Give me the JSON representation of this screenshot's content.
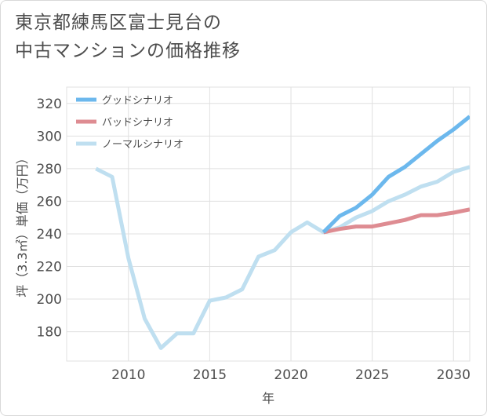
{
  "title_lines": [
    "東京都練馬区富士見台の",
    "中古マンションの価格推移"
  ],
  "chart_data": {
    "type": "line",
    "title": "東京都練馬区富士見台の中古マンションの価格推移",
    "xlabel": "年",
    "ylabel": "坪（3.3㎡）単価（万円）",
    "xlim": [
      2006.2,
      2031
    ],
    "ylim": [
      162,
      330
    ],
    "xticks": [
      2010,
      2015,
      2020,
      2025,
      2030
    ],
    "yticks": [
      180,
      200,
      220,
      240,
      260,
      280,
      300,
      320
    ],
    "grid": true,
    "legend_position": "top-left",
    "series": [
      {
        "name": "グッドシナリオ",
        "color": "#6cb8ed",
        "x": [
          2022,
          2023,
          2024,
          2025,
          2026,
          2027,
          2028,
          2029,
          2030,
          2031
        ],
        "values": [
          241,
          251,
          256,
          264,
          275,
          281,
          289,
          297,
          304,
          312
        ]
      },
      {
        "name": "バッドシナリオ",
        "color": "#de8c92",
        "x": [
          2022,
          2023,
          2024,
          2025,
          2026,
          2027,
          2028,
          2029,
          2030,
          2031
        ],
        "values": [
          241,
          243,
          244.5,
          244.5,
          246.5,
          248.5,
          251.5,
          251.5,
          253,
          255
        ]
      },
      {
        "name": "ノーマルシナリオ",
        "color": "#bfdff0",
        "x": [
          2008,
          2009,
          2010,
          2011,
          2012,
          2013,
          2014,
          2015,
          2016,
          2017,
          2018,
          2019,
          2020,
          2021,
          2022,
          2023,
          2024,
          2025,
          2026,
          2027,
          2028,
          2029,
          2030,
          2031
        ],
        "values": [
          280,
          275,
          225,
          188,
          170,
          179,
          179,
          199,
          201,
          206,
          226,
          230,
          241,
          247,
          241,
          244,
          250,
          254,
          260,
          264,
          269,
          272,
          278,
          281
        ]
      }
    ]
  }
}
